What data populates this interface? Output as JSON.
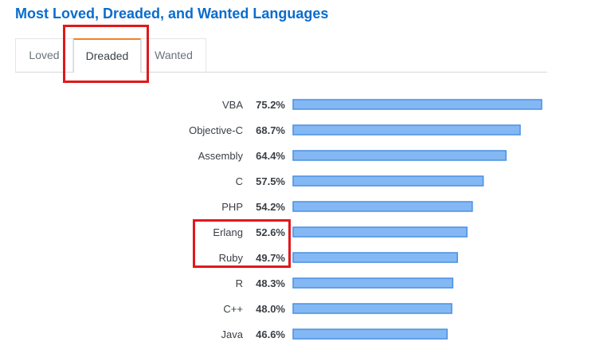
{
  "title": "Most Loved, Dreaded, and Wanted Languages",
  "tabs": [
    {
      "label": "Loved",
      "active": false
    },
    {
      "label": "Dreaded",
      "active": true
    },
    {
      "label": "Wanted",
      "active": false
    }
  ],
  "colors": {
    "title": "#0a6ccd",
    "bar_fill": "#84b8f4",
    "bar_stroke": "#4a90e2",
    "active_tab_accent": "#f48024",
    "highlight_box": "#e0181b"
  },
  "chart_data": {
    "type": "bar",
    "orientation": "horizontal",
    "categories": [
      "VBA",
      "Objective-C",
      "Assembly",
      "C",
      "PHP",
      "Erlang",
      "Ruby",
      "R",
      "C++",
      "Java"
    ],
    "values": [
      75.2,
      68.7,
      64.4,
      57.5,
      54.2,
      52.6,
      49.7,
      48.3,
      48.0,
      46.6
    ],
    "value_labels": [
      "75.2%",
      "68.7%",
      "64.4%",
      "57.5%",
      "54.2%",
      "52.6%",
      "49.7%",
      "48.3%",
      "48.0%",
      "46.6%"
    ],
    "xlim": [
      0,
      75.2
    ],
    "grid": false,
    "legend": "none"
  }
}
